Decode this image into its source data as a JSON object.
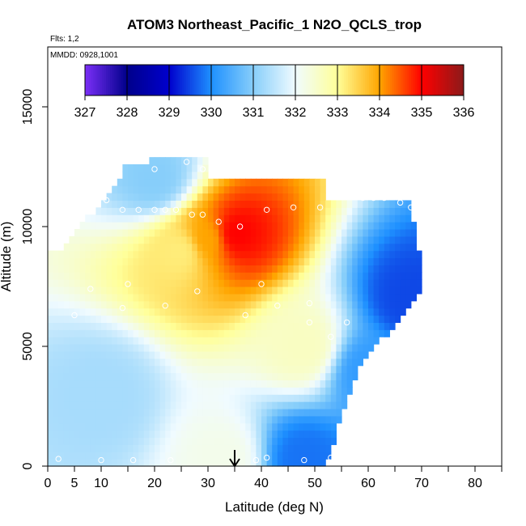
{
  "chart_data": {
    "type": "heatmap",
    "title": "ATOM3 Northeast_Pacific_1 N2O_QCLS_trop",
    "flights_text": "Flts: 1,2",
    "dates_text": "MMDD: 0928,1001",
    "xlabel": "Latitude (deg N)",
    "ylabel": "Altitude (m)",
    "xlim": [
      0,
      85
    ],
    "ylim": [
      0,
      17500
    ],
    "x_ticks": [
      0,
      5,
      10,
      20,
      30,
      40,
      50,
      60,
      70,
      80
    ],
    "x_minor_ticks": [
      15,
      25,
      35,
      45,
      55,
      65,
      75,
      85
    ],
    "y_ticks": [
      0,
      5000,
      10000,
      15000
    ],
    "arrow_latitude": 35,
    "colorbar": {
      "min": 327,
      "max": 336,
      "tick_labels": [
        "327",
        "328",
        "329",
        "330",
        "331",
        "332",
        "333",
        "334",
        "335",
        "336"
      ],
      "colors": [
        "#7b2ff7",
        "#00008b",
        "#0000cd",
        "#1e90ff",
        "#87cefa",
        "#f0fbff",
        "#ffff99",
        "#ffa500",
        "#ff0000",
        "#8b1a1a"
      ]
    },
    "field_description_points": [
      {
        "lat": 35,
        "alt": 9700,
        "value": 335.0
      },
      {
        "lat": 30,
        "alt": 9500,
        "value": 334.0
      },
      {
        "lat": 25,
        "alt": 9000,
        "value": 333.2
      },
      {
        "lat": 33,
        "alt": 300,
        "value": 332.2
      },
      {
        "lat": 48,
        "alt": 300,
        "value": 329.8
      },
      {
        "lat": 68,
        "alt": 7000,
        "value": 329.5
      },
      {
        "lat": 60,
        "alt": 4000,
        "value": 330.2
      },
      {
        "lat": 10,
        "alt": 3000,
        "value": 331.3
      },
      {
        "lat": 48,
        "alt": 5000,
        "value": 332.6
      },
      {
        "lat": 20,
        "alt": 12000,
        "value": 331.0
      }
    ],
    "sample_points": [
      [
        2,
        300
      ],
      [
        10,
        250
      ],
      [
        16,
        250
      ],
      [
        23,
        250
      ],
      [
        39,
        250
      ],
      [
        41,
        350
      ],
      [
        48,
        250
      ],
      [
        53,
        350
      ],
      [
        5,
        6300
      ],
      [
        14,
        6600
      ],
      [
        22,
        6700
      ],
      [
        28,
        7300
      ],
      [
        37,
        6300
      ],
      [
        43,
        6700
      ],
      [
        49,
        6000
      ],
      [
        53,
        5400
      ],
      [
        56,
        6000
      ],
      [
        49,
        6800
      ],
      [
        40,
        7600
      ],
      [
        70,
        6200
      ],
      [
        15,
        7600
      ],
      [
        8,
        7400
      ],
      [
        14,
        10700
      ],
      [
        17,
        10700
      ],
      [
        20,
        10700
      ],
      [
        22,
        10700
      ],
      [
        24,
        10700
      ],
      [
        27,
        10500
      ],
      [
        29,
        10500
      ],
      [
        32,
        10200
      ],
      [
        36,
        10000
      ],
      [
        41,
        10700
      ],
      [
        46,
        10800
      ],
      [
        51,
        10800
      ],
      [
        59,
        11200
      ],
      [
        61,
        11200
      ],
      [
        63,
        11200
      ],
      [
        66,
        11000
      ],
      [
        68,
        10800
      ],
      [
        5,
        11100
      ],
      [
        11,
        11100
      ],
      [
        13,
        12600
      ],
      [
        20,
        12400
      ],
      [
        26,
        12700
      ],
      [
        29,
        12400
      ]
    ]
  }
}
